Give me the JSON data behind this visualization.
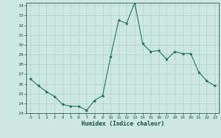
{
  "x": [
    0,
    1,
    2,
    3,
    4,
    5,
    6,
    7,
    8,
    9,
    10,
    11,
    12,
    13,
    14,
    15,
    16,
    17,
    18,
    19,
    20,
    21,
    22,
    23
  ],
  "y": [
    26.5,
    25.8,
    25.2,
    24.7,
    23.9,
    23.7,
    23.7,
    23.3,
    24.3,
    24.8,
    28.8,
    32.5,
    32.2,
    34.3,
    30.1,
    29.3,
    29.4,
    28.5,
    29.3,
    29.1,
    29.1,
    27.2,
    26.3,
    25.8
  ],
  "xlabel": "Humidex (Indice chaleur)",
  "ylim": [
    23,
    34
  ],
  "xlim": [
    -0.5,
    23.5
  ],
  "yticks": [
    23,
    24,
    25,
    26,
    27,
    28,
    29,
    30,
    31,
    32,
    33,
    34
  ],
  "xticks": [
    0,
    1,
    2,
    3,
    4,
    5,
    6,
    7,
    8,
    9,
    10,
    11,
    12,
    13,
    14,
    15,
    16,
    17,
    18,
    19,
    20,
    21,
    22,
    23
  ],
  "line_color": "#1a6b5a",
  "marker_color": "#1a6b5a",
  "bg_color": "#cce8e0",
  "grid_color": "#aacfc6",
  "axis_color": "#336655",
  "tick_label_color": "#1a4a40"
}
